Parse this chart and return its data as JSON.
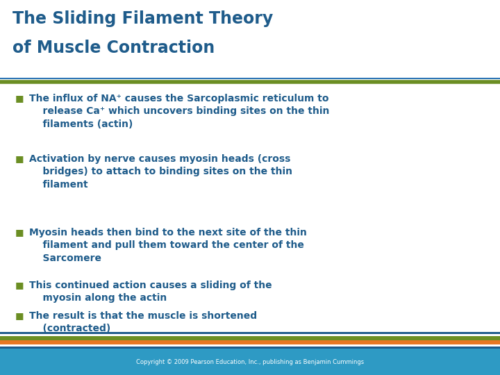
{
  "title_line1": "The Sliding Filament Theory",
  "title_line2": "of Muscle Contraction",
  "title_color": "#1F5C8B",
  "title_fontsize": 17,
  "bg_color": "#FFFFFF",
  "bullet_color": "#6B8E23",
  "text_color": "#1F5C8B",
  "bullet_char": "■",
  "bullet_fontsize": 10,
  "bullets": [
    "The influx of NA⁺ causes the Sarcoplasmic reticulum to\n    release Ca⁺ which uncovers binding sites on the thin\n    filaments (actin)",
    "Activation by nerve causes myosin heads (cross\n    bridges) to attach to binding sites on the thin\n    filament",
    "Myosin heads then bind to the next site of the thin\n    filament and pull them toward the center of the\n    Sarcomere",
    "This continued action causes a sliding of the\n    myosin along the actin",
    "The result is that the muscle is shortened\n    (contracted)"
  ],
  "sep_green_color": "#6B8E23",
  "sep_blue_color": "#2E75B6",
  "footer_blue": "#2E9AC4",
  "footer_text": "Copyright © 2009 Pearson Education, Inc., publishing as Benjamin Cummings",
  "footer_text_color": "#FFFFFF",
  "footer_fontsize": 6,
  "stripe_dark_blue": "#1F5C8B",
  "stripe_white": "#FFFFFF",
  "stripe_orange": "#E87722",
  "stripe_green": "#6B8E23"
}
